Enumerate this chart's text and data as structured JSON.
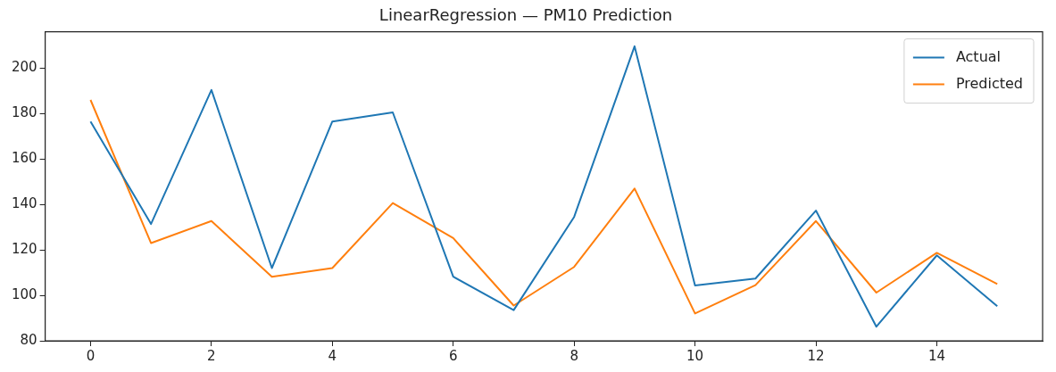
{
  "chart_data": {
    "type": "line",
    "title": "LinearRegression — PM10 Prediction",
    "x": [
      0,
      1,
      2,
      3,
      4,
      5,
      6,
      7,
      8,
      9,
      10,
      11,
      12,
      13,
      14,
      15
    ],
    "series": [
      {
        "name": "Actual",
        "color": "#1f77b4",
        "values": [
          176.5,
          131.4,
          190.4,
          112,
          176.5,
          180.5,
          108.2,
          93.5,
          134.5,
          209.6,
          104.3,
          107.4,
          137.3,
          86.2,
          117.6,
          95.2
        ]
      },
      {
        "name": "Predicted",
        "color": "#ff7f0e",
        "values": [
          186,
          123,
          132.7,
          108.2,
          112,
          140.6,
          125.2,
          95.5,
          112.5,
          147,
          92,
          104.5,
          132.7,
          101.2,
          118.7,
          105
        ]
      }
    ],
    "xlim": [
      -0.75,
      15.75
    ],
    "xticks": [
      0,
      2,
      4,
      6,
      8,
      10,
      12,
      14
    ],
    "ylim": [
      80,
      216
    ],
    "yticks": [
      80,
      100,
      120,
      140,
      160,
      180,
      200
    ],
    "grid": false,
    "legend": "top right",
    "marker": "none",
    "line_style": "solid"
  }
}
